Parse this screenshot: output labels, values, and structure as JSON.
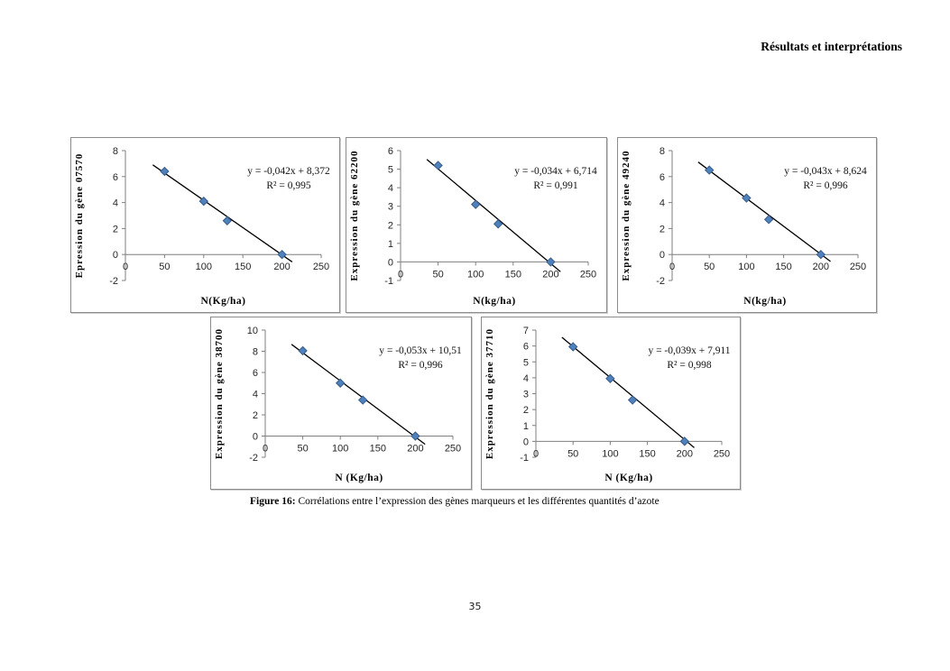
{
  "header": {
    "title": "Résultats et interprétations"
  },
  "caption": {
    "label": "Figure 16:",
    "text": " Corrélations entre l’expression des gènes marqueurs et les différentes quantités d’azote"
  },
  "footer": {
    "page_number": "35"
  },
  "colors": {
    "marker_fill": "#4F81BD",
    "marker_edge": "#385D8A",
    "trendline": "#000000",
    "axis": "#7f7f7f"
  },
  "chart_data": [
    {
      "type": "scatter",
      "y_axis_title": "Epression du gène 07570",
      "x_axis_title": "N(Kg/ha)",
      "equation": "y = -0,042x + 8,372",
      "r_squared": "R² = 0,995",
      "x": [
        50,
        100,
        130,
        200
      ],
      "y": [
        6.4,
        4.1,
        2.6,
        0
      ],
      "trend": {
        "slope": -0.042,
        "intercept": 8.372,
        "x_start": 35,
        "x_end": 213
      },
      "xlim": [
        0,
        250
      ],
      "ylim": [
        -2,
        8
      ],
      "x_ticks": [
        0,
        50,
        100,
        150,
        200,
        250
      ],
      "y_ticks": [
        -2,
        0,
        2,
        4,
        6,
        8
      ]
    },
    {
      "type": "scatter",
      "y_axis_title": "Expression du gène 62200",
      "x_axis_title": "N(kg/ha)",
      "equation": "y = -0,034x + 6,714",
      "r_squared": "R² = 0,991",
      "x": [
        50,
        100,
        130,
        200
      ],
      "y": [
        5.2,
        3.1,
        2.05,
        0
      ],
      "trend": {
        "slope": -0.034,
        "intercept": 6.714,
        "x_start": 35,
        "x_end": 213
      },
      "xlim": [
        0,
        250
      ],
      "ylim": [
        -1,
        6
      ],
      "x_ticks": [
        0,
        50,
        100,
        150,
        200,
        250
      ],
      "y_ticks": [
        -1,
        0,
        1,
        2,
        3,
        4,
        5,
        6
      ]
    },
    {
      "type": "scatter",
      "y_axis_title": "Expression du gène 49240",
      "x_axis_title": "N(kg/ha)",
      "equation": "y = -0,043x + 8,624",
      "r_squared": "R² = 0,996",
      "x": [
        50,
        100,
        130,
        200
      ],
      "y": [
        6.5,
        4.35,
        2.7,
        0
      ],
      "trend": {
        "slope": -0.043,
        "intercept": 8.624,
        "x_start": 35,
        "x_end": 213
      },
      "xlim": [
        0,
        250
      ],
      "ylim": [
        -2,
        8
      ],
      "x_ticks": [
        0,
        50,
        100,
        150,
        200,
        250
      ],
      "y_ticks": [
        -2,
        0,
        2,
        4,
        6,
        8
      ]
    },
    {
      "type": "scatter",
      "y_axis_title": "Expression du gène 38700",
      "x_axis_title": "N (Kg/ha)",
      "equation": "y = -0,053x + 10,51",
      "r_squared": "R² = 0,996",
      "x": [
        50,
        100,
        130,
        200
      ],
      "y": [
        8.05,
        5.0,
        3.4,
        0
      ],
      "trend": {
        "slope": -0.053,
        "intercept": 10.51,
        "x_start": 35,
        "x_end": 213
      },
      "xlim": [
        0,
        250
      ],
      "ylim": [
        -2,
        10
      ],
      "x_ticks": [
        0,
        50,
        100,
        150,
        200,
        250
      ],
      "y_ticks": [
        -2,
        0,
        2,
        4,
        6,
        8,
        10
      ]
    },
    {
      "type": "scatter",
      "y_axis_title": "Expression du gène 37710",
      "x_axis_title": "N (Kg/ha)",
      "equation": "y = -0,039x + 7,911",
      "r_squared": "R² = 0,998",
      "x": [
        50,
        100,
        130,
        200
      ],
      "y": [
        5.95,
        3.95,
        2.6,
        0
      ],
      "trend": {
        "slope": -0.039,
        "intercept": 7.911,
        "x_start": 35,
        "x_end": 213
      },
      "xlim": [
        0,
        250
      ],
      "ylim": [
        -1,
        7
      ],
      "x_ticks": [
        0,
        50,
        100,
        150,
        200,
        250
      ],
      "y_ticks": [
        -1,
        0,
        1,
        2,
        3,
        4,
        5,
        6,
        7
      ]
    }
  ]
}
